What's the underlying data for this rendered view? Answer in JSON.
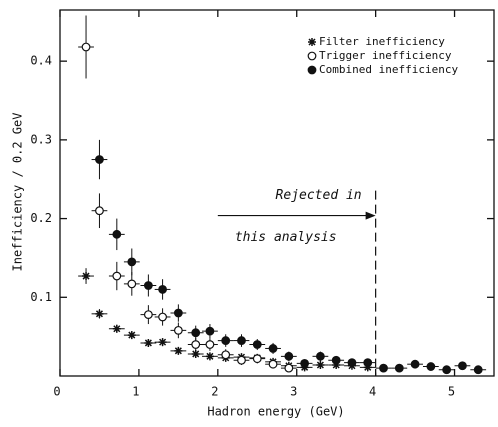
{
  "chart_data": {
    "type": "scatter",
    "x_label": "Hadron energy (GeV)",
    "y_label": "Inefficiency / 0.2 GeV",
    "xlim": [
      0,
      5.5
    ],
    "ylim": [
      0,
      0.465
    ],
    "xticks": [
      0,
      1,
      2,
      3,
      4,
      5
    ],
    "yticks": [
      0.1,
      0.2,
      0.3,
      0.4
    ],
    "legend": "upper right",
    "annotation": {
      "lines": [
        "Rejected in",
        "this analysis"
      ],
      "x0": 2,
      "x1": 4,
      "y": 0.2
    },
    "series": [
      {
        "name": "Filter inefficiency",
        "marker": "star",
        "color": "#111",
        "xerr": 0.1,
        "x": [
          0.33,
          0.5,
          0.72,
          0.91,
          1.12,
          1.3,
          1.5,
          1.72,
          1.9,
          2.1,
          2.3,
          2.5,
          2.7,
          2.9,
          3.1,
          3.3,
          3.5,
          3.7,
          3.9
        ],
        "values": [
          0.127,
          0.079,
          0.06,
          0.052,
          0.042,
          0.043,
          0.032,
          0.028,
          0.025,
          0.023,
          0.024,
          0.023,
          0.018,
          0.013,
          0.011,
          0.014,
          0.014,
          0.013,
          0.011
        ],
        "errors": [
          0.01,
          0.006,
          0.005,
          0.005,
          0.005,
          0.005,
          0.004,
          0.004,
          0.004,
          0.004,
          0.004,
          0.004,
          0.004,
          0.004,
          0.003,
          0.003,
          0.003,
          0.003,
          0.003
        ]
      },
      {
        "name": "Trigger inefficiency",
        "marker": "open",
        "color": "#111",
        "xerr": 0.1,
        "x": [
          0.33,
          0.5,
          0.72,
          0.91,
          1.12,
          1.3,
          1.5,
          1.72,
          1.9,
          2.1,
          2.3,
          2.5,
          2.7,
          2.9
        ],
        "values": [
          0.418,
          0.21,
          0.127,
          0.117,
          0.078,
          0.075,
          0.058,
          0.04,
          0.04,
          0.027,
          0.02,
          0.022,
          0.015,
          0.01
        ],
        "errors": [
          0.04,
          0.022,
          0.018,
          0.015,
          0.012,
          0.011,
          0.01,
          0.008,
          0.008,
          0.007,
          0.006,
          0.006,
          0.005,
          0.005
        ]
      },
      {
        "name": "Combined inefficiency",
        "marker": "filled",
        "color": "#111",
        "xerr": 0.1,
        "x": [
          0.5,
          0.72,
          0.91,
          1.12,
          1.3,
          1.5,
          1.72,
          1.9,
          2.1,
          2.3,
          2.5,
          2.7,
          2.9,
          3.1,
          3.3,
          3.5,
          3.7,
          3.9,
          4.1,
          4.3,
          4.5,
          4.7,
          4.9,
          5.1,
          5.3
        ],
        "values": [
          0.275,
          0.18,
          0.145,
          0.115,
          0.11,
          0.08,
          0.055,
          0.057,
          0.045,
          0.045,
          0.04,
          0.035,
          0.025,
          0.016,
          0.025,
          0.02,
          0.017,
          0.017,
          0.01,
          0.01,
          0.015,
          0.012,
          0.008,
          0.013,
          0.008
        ],
        "errors": [
          0.025,
          0.02,
          0.017,
          0.014,
          0.013,
          0.011,
          0.009,
          0.009,
          0.008,
          0.008,
          0.007,
          0.007,
          0.006,
          0.005,
          0.006,
          0.005,
          0.005,
          0.005,
          0.004,
          0.004,
          0.004,
          0.004,
          0.003,
          0.004,
          0.003
        ]
      }
    ]
  }
}
